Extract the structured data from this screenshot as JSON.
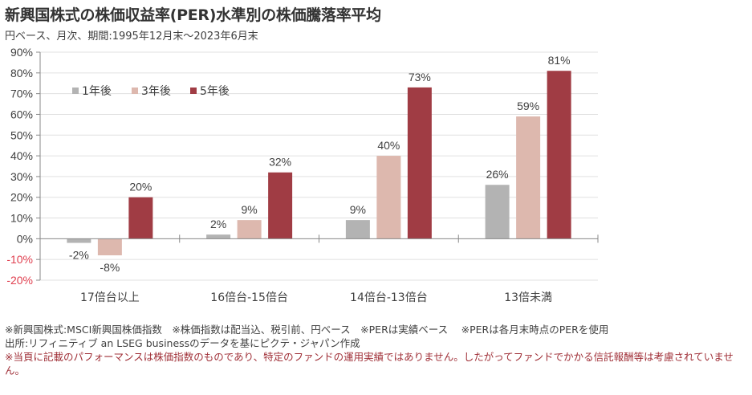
{
  "header": {
    "title": "新興国株式の株価収益率(PER)水準別の株価騰落率平均",
    "subtitle": "円ベース、月次、期間:1995年12月末～2023年6月末"
  },
  "chart_data": {
    "type": "bar",
    "title": "新興国株式の株価収益率(PER)水準別の株価騰落率平均",
    "xlabel": "",
    "ylabel": "",
    "ylim": [
      -20,
      90
    ],
    "yticks": [
      90,
      80,
      70,
      60,
      50,
      40,
      30,
      20,
      10,
      0,
      -10,
      -20
    ],
    "ytick_labels": [
      "90%",
      "80%",
      "70%",
      "60%",
      "50%",
      "40%",
      "30%",
      "20%",
      "10%",
      "0%",
      "-10%",
      "-20%"
    ],
    "grid": true,
    "legend_position": "top-left",
    "categories": [
      "17倍台以上",
      "16倍台-15倍台",
      "14倍台-13倍台",
      "13倍未満"
    ],
    "series": [
      {
        "name": "1年後",
        "values": [
          -2,
          2,
          9,
          26
        ],
        "labels": [
          "-2%",
          "2%",
          "9%",
          "26%"
        ],
        "color": "#b3b3b3"
      },
      {
        "name": "3年後",
        "values": [
          -8,
          9,
          40,
          59
        ],
        "labels": [
          "-8%",
          "9%",
          "40%",
          "59%"
        ],
        "color": "#ddb8ae"
      },
      {
        "name": "5年後",
        "values": [
          20,
          32,
          73,
          81
        ],
        "labels": [
          "20%",
          "32%",
          "73%",
          "81%"
        ],
        "color": "#a03c44"
      }
    ],
    "negative_tick_color": "#e04050",
    "tick_color": "#404040"
  },
  "footnotes": {
    "line1": "※新興国株式:MSCI新興国株価指数　※株価指数は配当込、税引前、円ベース　※PERは実績ベース　 ※PERは各月末時点のPERを使用",
    "line2": "出所:リフィニティブ an LSEG businessのデータを基にピクテ・ジャパン作成",
    "line3": "※当頁に記載のパフォーマンスは株価指数のものであり、特定のファンドの運用実績ではありません。したがってファンドでかかる信託報酬等は考慮されていません。"
  }
}
